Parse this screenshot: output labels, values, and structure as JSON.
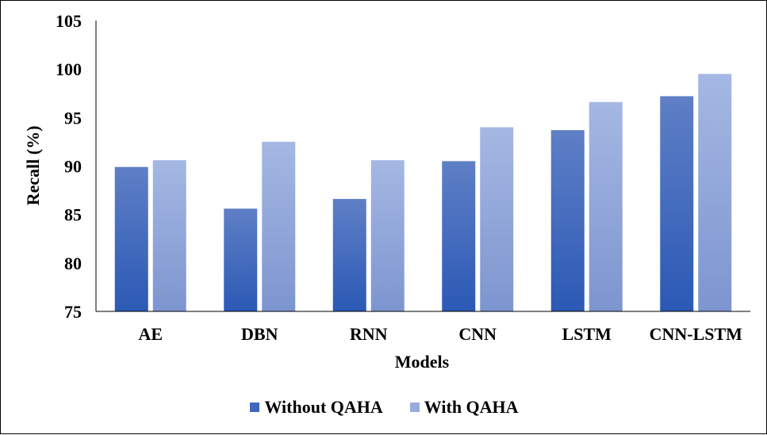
{
  "chart_data": {
    "type": "bar",
    "title": "",
    "xlabel": "Models",
    "ylabel": "Recall (%)",
    "ylim": [
      75,
      105
    ],
    "yticks": [
      75,
      80,
      85,
      90,
      95,
      100,
      105
    ],
    "categories": [
      "AE",
      "DBN",
      "RNN",
      "CNN",
      "LSTM",
      "CNN-LSTM"
    ],
    "series": [
      {
        "name": "Without QAHA",
        "values": [
          89.9,
          85.6,
          86.6,
          90.5,
          93.7,
          97.2
        ]
      },
      {
        "name": "With QAHA",
        "values": [
          90.6,
          92.5,
          90.6,
          94.0,
          96.6,
          99.5
        ]
      }
    ],
    "grid": false,
    "legend_position": "bottom"
  },
  "colors": {
    "without": {
      "dark": "#2b59b5",
      "light": "#5f7fc6"
    },
    "with": {
      "dark": "#7d95d0",
      "light": "#a5b8e3"
    },
    "without_swatch": "#3f67c0",
    "with_swatch": "#99acdd",
    "axis": "#000000"
  }
}
